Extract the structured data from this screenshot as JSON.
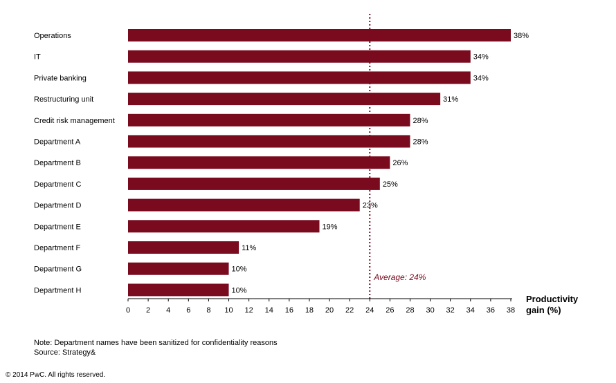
{
  "chart_data": {
    "type": "bar",
    "orientation": "horizontal",
    "categories": [
      "Operations",
      "IT",
      "Private banking",
      "Restructuring unit",
      "Credit risk management",
      "Department A",
      "Department B",
      "Department C",
      "Department D",
      "Department E",
      "Department F",
      "Department G",
      "Department H"
    ],
    "values": [
      38,
      34,
      34,
      31,
      28,
      28,
      26,
      25,
      23,
      19,
      11,
      10,
      10
    ],
    "value_labels": [
      "38%",
      "34%",
      "34%",
      "31%",
      "28%",
      "28%",
      "26%",
      "25%",
      "23%",
      "19%",
      "11%",
      "10%",
      "10%"
    ],
    "xlabel_lines": [
      "Productivity",
      "gain (%)"
    ],
    "xlim": [
      0,
      38
    ],
    "xticks": [
      0,
      2,
      4,
      6,
      8,
      10,
      12,
      14,
      16,
      18,
      20,
      22,
      24,
      26,
      28,
      30,
      32,
      34,
      36,
      38
    ],
    "reference_line": {
      "value": 24,
      "label": "Average: 24%",
      "style": "dotted",
      "color": "#7a0a1e"
    },
    "bar_color": "#7a0a1e",
    "grid": false,
    "legend": "none"
  },
  "footer": {
    "note": "Note: Department names have been sanitized for confidentiality reasons",
    "source": "Source: Strategy&",
    "copyright": "© 2014 PwC. All rights reserved."
  }
}
